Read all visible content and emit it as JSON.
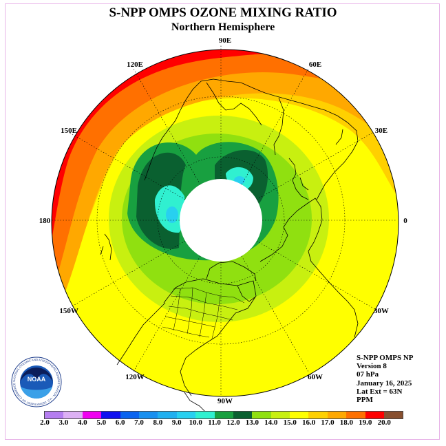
{
  "title": "S-NPP OMPS OZONE MIXING RATIO",
  "subtitle": "Northern Hemisphere",
  "longitude_labels": [
    {
      "text": "90E",
      "lon": 90
    },
    {
      "text": "60E",
      "lon": 60
    },
    {
      "text": "30E",
      "lon": 30
    },
    {
      "text": "0",
      "lon": 0
    },
    {
      "text": "30W",
      "lon": -30
    },
    {
      "text": "60W",
      "lon": -60
    },
    {
      "text": "90W",
      "lon": -90
    },
    {
      "text": "120W",
      "lon": -120
    },
    {
      "text": "150W",
      "lon": -150
    },
    {
      "text": "180",
      "lon": 180
    },
    {
      "text": "150E",
      "lon": 150
    },
    {
      "text": "120E",
      "lon": 120
    }
  ],
  "info": {
    "line1": "S-NPP OMPS NP",
    "line2": "Version 8",
    "line3": "07 hPa",
    "line4": "January 16, 2025",
    "line5": "Lat Ext = 63N",
    "line6": "PPM"
  },
  "logo": {
    "text": "NOAA",
    "ring_text": "NATIONAL OCEANIC AND ATMOSPHERIC ADMINISTRATION · U.S. DEPARTMENT OF COMMERCE"
  },
  "colorbar": {
    "ticks": [
      "2.0",
      "3.0",
      "4.0",
      "5.0",
      "6.0",
      "7.0",
      "8.0",
      "9.0",
      "10.0",
      "11.0",
      "12.0",
      "13.0",
      "14.0",
      "15.0",
      "16.0",
      "17.0",
      "18.0",
      "19.0",
      "20.0"
    ],
    "colors": [
      "#b57ef0",
      "#dcb0f4",
      "#f000f0",
      "#1010f0",
      "#0a64f0",
      "#1890f0",
      "#20b0f0",
      "#28d0f0",
      "#30f0d0",
      "#18a040",
      "#0a6030",
      "#90e010",
      "#c8f010",
      "#ffff00",
      "#ffd000",
      "#ffa800",
      "#ff7000",
      "#ff0000",
      "#885030"
    ]
  },
  "colors": {
    "outside": "#ffffff",
    "polar_night": "#ffffff",
    "coastline": "#000000",
    "grid": "#000000",
    "frame": "#e8b4e8"
  }
}
